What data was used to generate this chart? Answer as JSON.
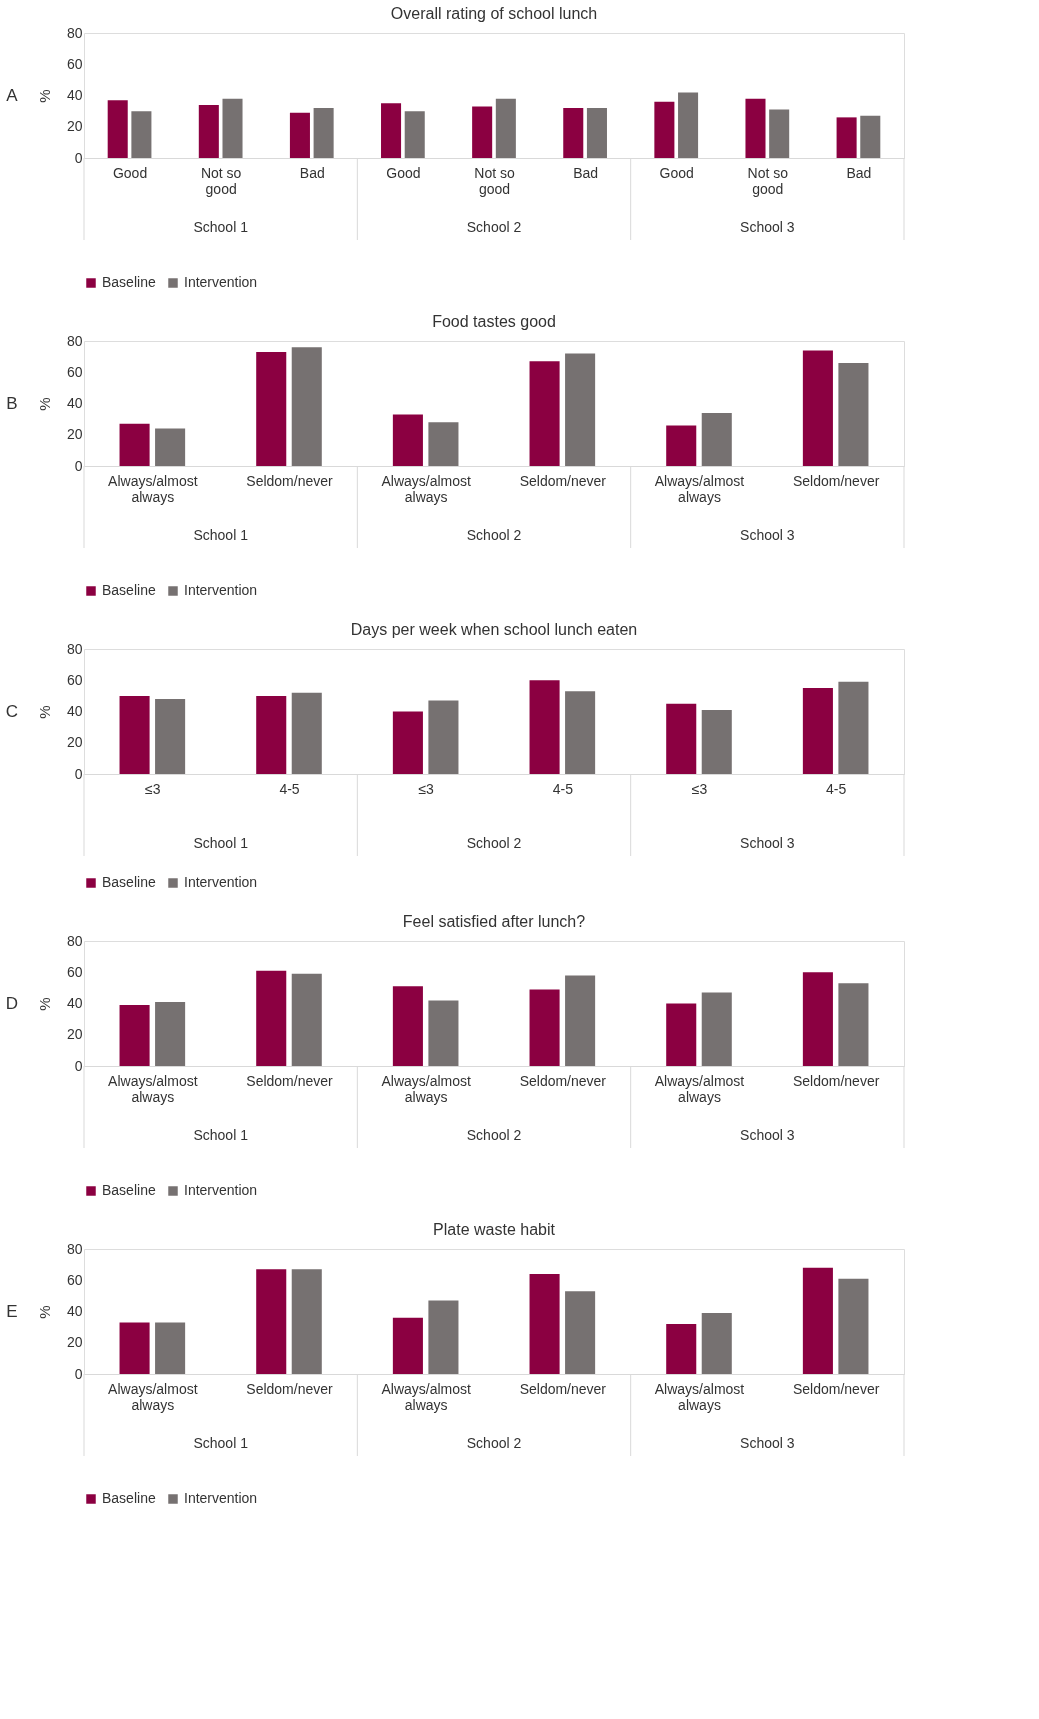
{
  "chart_data": [
    {
      "type": "bar",
      "title": "Overall rating of school lunch",
      "ylabel": "%",
      "categories": [
        "Good",
        "Not so good",
        "Bad",
        "Good",
        "Not so good",
        "Bad",
        "Good",
        "Not so good",
        "Bad"
      ],
      "ylim": [
        0,
        80
      ],
      "yticks": [
        0,
        20,
        40,
        60,
        80
      ],
      "legend": "bottom",
      "annotations": [
        "A",
        "School 1",
        "School 2",
        "School 3"
      ],
      "series": [
        {
          "name": "Baseline",
          "color": "#8b0041",
          "values": [
            37,
            34,
            29,
            35,
            33,
            32,
            36,
            38,
            26
          ]
        },
        {
          "name": "Intervention",
          "color": "#767171",
          "values": [
            30,
            38,
            32,
            30,
            38,
            32,
            42,
            31,
            27
          ]
        }
      ]
    },
    {
      "type": "bar",
      "title": "Food tastes good",
      "ylabel": "%",
      "categories": [
        "Always/almost always",
        "Seldom/never",
        "Always/almost always",
        "Seldom/never",
        "Always/almost always",
        "Seldom/never"
      ],
      "ylim": [
        0,
        80
      ],
      "yticks": [
        0,
        20,
        40,
        60,
        80
      ],
      "legend": "bottom",
      "annotations": [
        "B",
        "School 1",
        "School 2",
        "School 3"
      ],
      "series": [
        {
          "name": "Baseline",
          "color": "#8b0041",
          "values": [
            27,
            73,
            33,
            67,
            26,
            74
          ]
        },
        {
          "name": "Intervention",
          "color": "#767171",
          "values": [
            24,
            76,
            28,
            72,
            34,
            66
          ]
        }
      ]
    },
    {
      "type": "bar",
      "title": "Days per week when school lunch eaten",
      "ylabel": "%",
      "categories": [
        "≤3",
        "4-5",
        "≤3",
        "4-5",
        "≤3",
        "4-5"
      ],
      "ylim": [
        0,
        80
      ],
      "yticks": [
        0,
        20,
        40,
        60,
        80
      ],
      "legend": "bottom",
      "annotations": [
        "C",
        "School 1",
        "School 2",
        "School 3"
      ],
      "series": [
        {
          "name": "Baseline",
          "color": "#8b0041",
          "values": [
            50,
            50,
            40,
            60,
            45,
            55
          ]
        },
        {
          "name": "Intervention",
          "color": "#767171",
          "values": [
            48,
            52,
            47,
            53,
            41,
            59
          ]
        }
      ]
    },
    {
      "type": "bar",
      "title": "Feel satisfied after lunch?",
      "ylabel": "%",
      "categories": [
        "Always/almost always",
        "Seldom/never",
        "Always/almost always",
        "Seldom/never",
        "Always/almost always",
        "Seldom/never"
      ],
      "ylim": [
        0,
        80
      ],
      "yticks": [
        0,
        20,
        40,
        60,
        80
      ],
      "legend": "bottom",
      "annotations": [
        "D",
        "School 1",
        "School 2",
        "School 3"
      ],
      "series": [
        {
          "name": "Baseline",
          "color": "#8b0041",
          "values": [
            39,
            61,
            51,
            49,
            40,
            60
          ]
        },
        {
          "name": "Intervention",
          "color": "#767171",
          "values": [
            41,
            59,
            42,
            58,
            47,
            53
          ]
        }
      ]
    },
    {
      "type": "bar",
      "title": "Plate waste habit",
      "ylabel": "%",
      "categories": [
        "Always/almost always",
        "Seldom/never",
        "Always/almost always",
        "Seldom/never",
        "Always/almost always",
        "Seldom/never"
      ],
      "ylim": [
        0,
        80
      ],
      "yticks": [
        0,
        20,
        40,
        60,
        80
      ],
      "legend": "bottom",
      "annotations": [
        "E",
        "School 1",
        "School 2",
        "School 3"
      ],
      "series": [
        {
          "name": "Baseline",
          "color": "#8b0041",
          "values": [
            33,
            67,
            36,
            64,
            32,
            68
          ]
        },
        {
          "name": "Intervention",
          "color": "#767171",
          "values": [
            33,
            67,
            47,
            53,
            39,
            61
          ]
        }
      ]
    }
  ]
}
